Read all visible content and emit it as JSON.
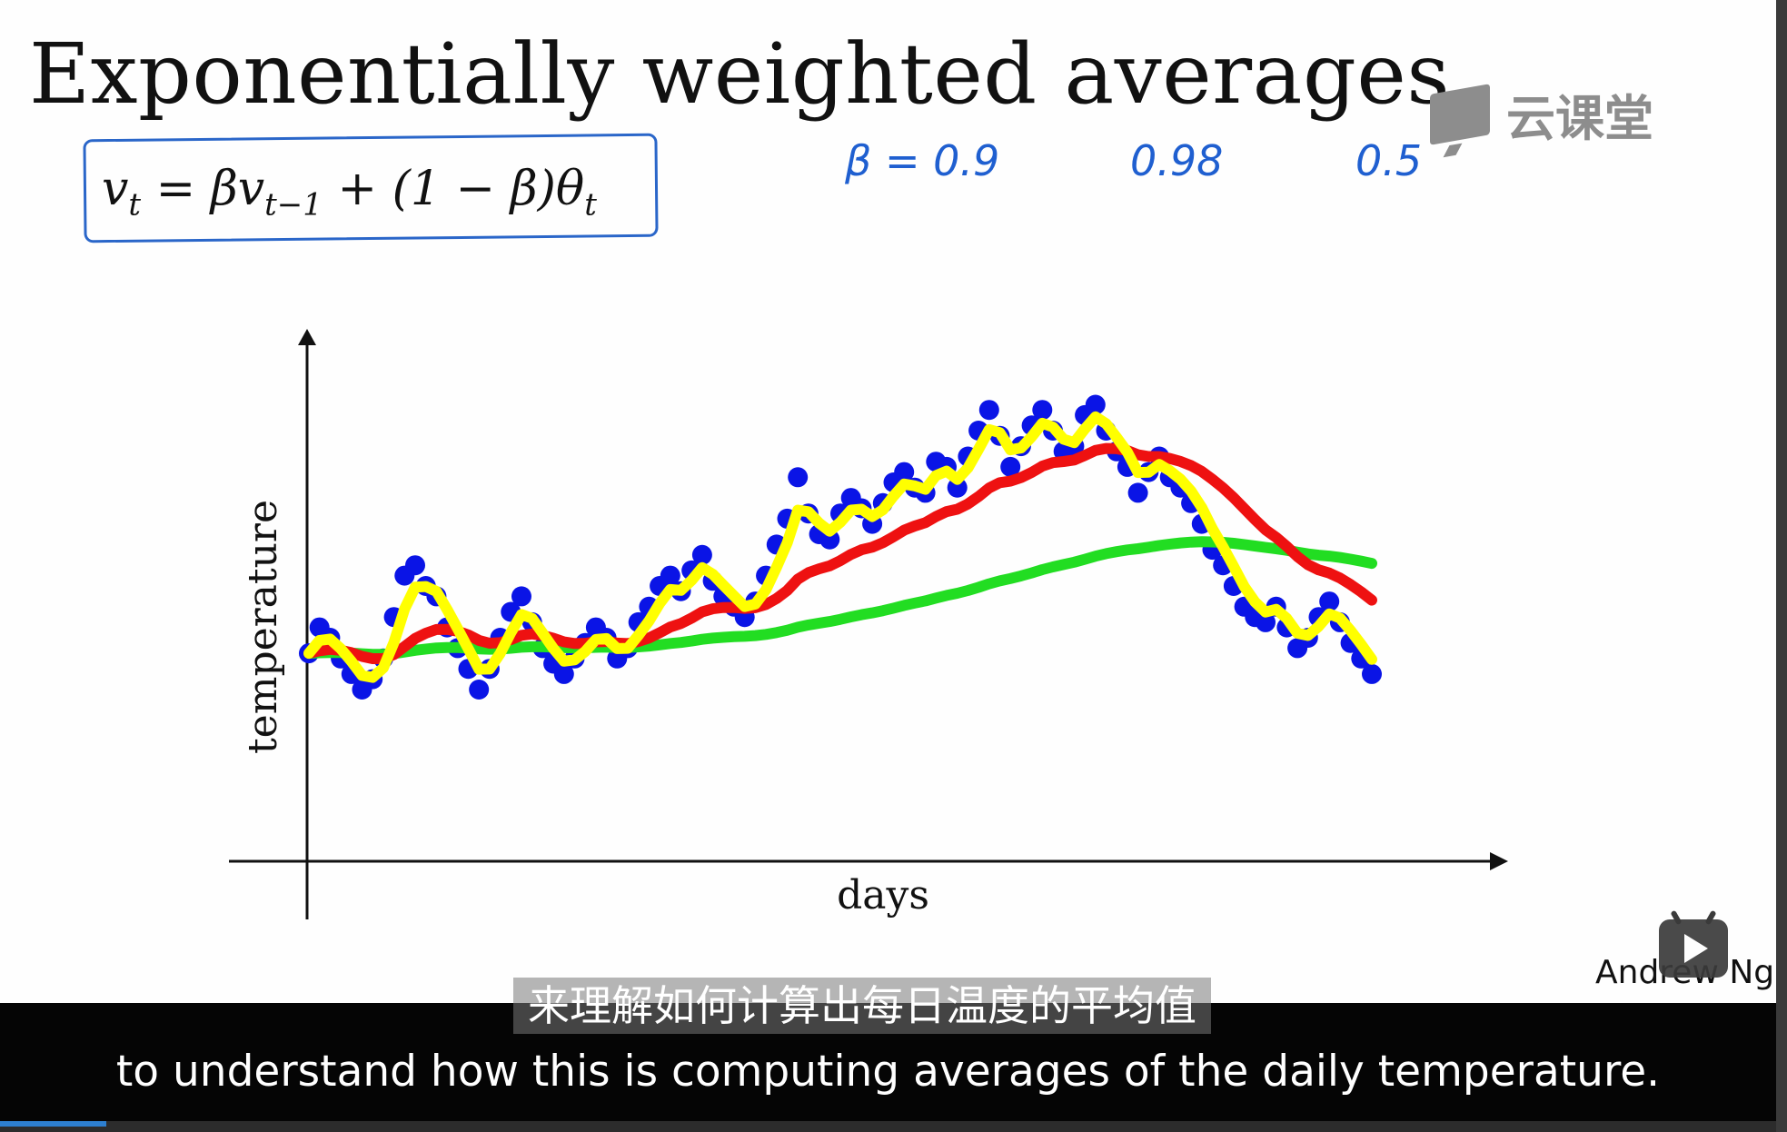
{
  "slide": {
    "title": "Exponentially weighted averages",
    "formula": {
      "lhs": "v",
      "lhs_sub": "t",
      "rhs_a": " = βv",
      "rhs_a_sub": "t−1",
      "rhs_b": " + (1 − β)θ",
      "rhs_b_sub": "t"
    },
    "annotations": [
      "β = 0.9",
      "0.98",
      "0.5"
    ],
    "logo_text": "云课堂",
    "author": "Andrew Ng"
  },
  "chart_data": {
    "type": "scatter",
    "xlabel": "days",
    "ylabel": "temperature",
    "grid": false,
    "legend": "none",
    "xlim": [
      0,
      100
    ],
    "ylim": [
      0,
      100
    ],
    "points": [
      [
        0,
        37
      ],
      [
        1,
        42
      ],
      [
        2,
        40
      ],
      [
        3,
        36
      ],
      [
        4,
        33
      ],
      [
        5,
        30
      ],
      [
        6,
        32
      ],
      [
        7,
        36
      ],
      [
        8,
        44
      ],
      [
        9,
        52
      ],
      [
        10,
        54
      ],
      [
        11,
        50
      ],
      [
        12,
        48
      ],
      [
        13,
        42
      ],
      [
        14,
        38
      ],
      [
        15,
        34
      ],
      [
        16,
        30
      ],
      [
        17,
        34
      ],
      [
        18,
        40
      ],
      [
        19,
        45
      ],
      [
        20,
        48
      ],
      [
        21,
        43
      ],
      [
        22,
        38
      ],
      [
        23,
        35
      ],
      [
        24,
        33
      ],
      [
        25,
        36
      ],
      [
        26,
        39
      ],
      [
        27,
        42
      ],
      [
        28,
        40
      ],
      [
        29,
        36
      ],
      [
        30,
        38
      ],
      [
        31,
        43
      ],
      [
        32,
        46
      ],
      [
        33,
        50
      ],
      [
        34,
        52
      ],
      [
        35,
        49
      ],
      [
        36,
        53
      ],
      [
        37,
        56
      ],
      [
        38,
        51
      ],
      [
        39,
        48
      ],
      [
        40,
        46
      ],
      [
        41,
        44
      ],
      [
        42,
        47
      ],
      [
        43,
        52
      ],
      [
        44,
        58
      ],
      [
        45,
        63
      ],
      [
        46,
        71
      ],
      [
        47,
        64
      ],
      [
        48,
        60
      ],
      [
        49,
        59
      ],
      [
        50,
        64
      ],
      [
        51,
        67
      ],
      [
        52,
        65
      ],
      [
        53,
        62
      ],
      [
        54,
        66
      ],
      [
        55,
        70
      ],
      [
        56,
        72
      ],
      [
        57,
        69
      ],
      [
        58,
        68
      ],
      [
        59,
        74
      ],
      [
        60,
        73
      ],
      [
        61,
        69
      ],
      [
        62,
        75
      ],
      [
        63,
        80
      ],
      [
        64,
        84
      ],
      [
        65,
        79
      ],
      [
        66,
        73
      ],
      [
        67,
        77
      ],
      [
        68,
        81
      ],
      [
        69,
        84
      ],
      [
        70,
        80
      ],
      [
        71,
        76
      ],
      [
        72,
        77
      ],
      [
        73,
        83
      ],
      [
        74,
        85
      ],
      [
        75,
        80
      ],
      [
        76,
        76
      ],
      [
        77,
        73
      ],
      [
        78,
        68
      ],
      [
        79,
        72
      ],
      [
        80,
        75
      ],
      [
        81,
        71
      ],
      [
        82,
        69
      ],
      [
        83,
        66
      ],
      [
        84,
        62
      ],
      [
        85,
        57
      ],
      [
        86,
        54
      ],
      [
        87,
        50
      ],
      [
        88,
        46
      ],
      [
        89,
        44
      ],
      [
        90,
        43
      ],
      [
        91,
        46
      ],
      [
        92,
        42
      ],
      [
        93,
        38
      ],
      [
        94,
        40
      ],
      [
        95,
        44
      ],
      [
        96,
        47
      ],
      [
        97,
        43
      ],
      [
        98,
        39
      ],
      [
        99,
        36
      ],
      [
        100,
        33
      ]
    ],
    "series": [
      {
        "name": "",
        "color": "#ee1111",
        "beta": 0.9
      },
      {
        "name": "",
        "color": "#22dd22",
        "beta": 0.98
      },
      {
        "name": "",
        "color": "#ffff00",
        "beta": 0.5
      }
    ],
    "point_color": "#0a14e6"
  },
  "player": {
    "subtitle_cn": "来理解如何计算出每日温度的平均值",
    "subtitle_en": "to understand how this is computing averages of the daily temperature.",
    "progress": 0.06
  }
}
